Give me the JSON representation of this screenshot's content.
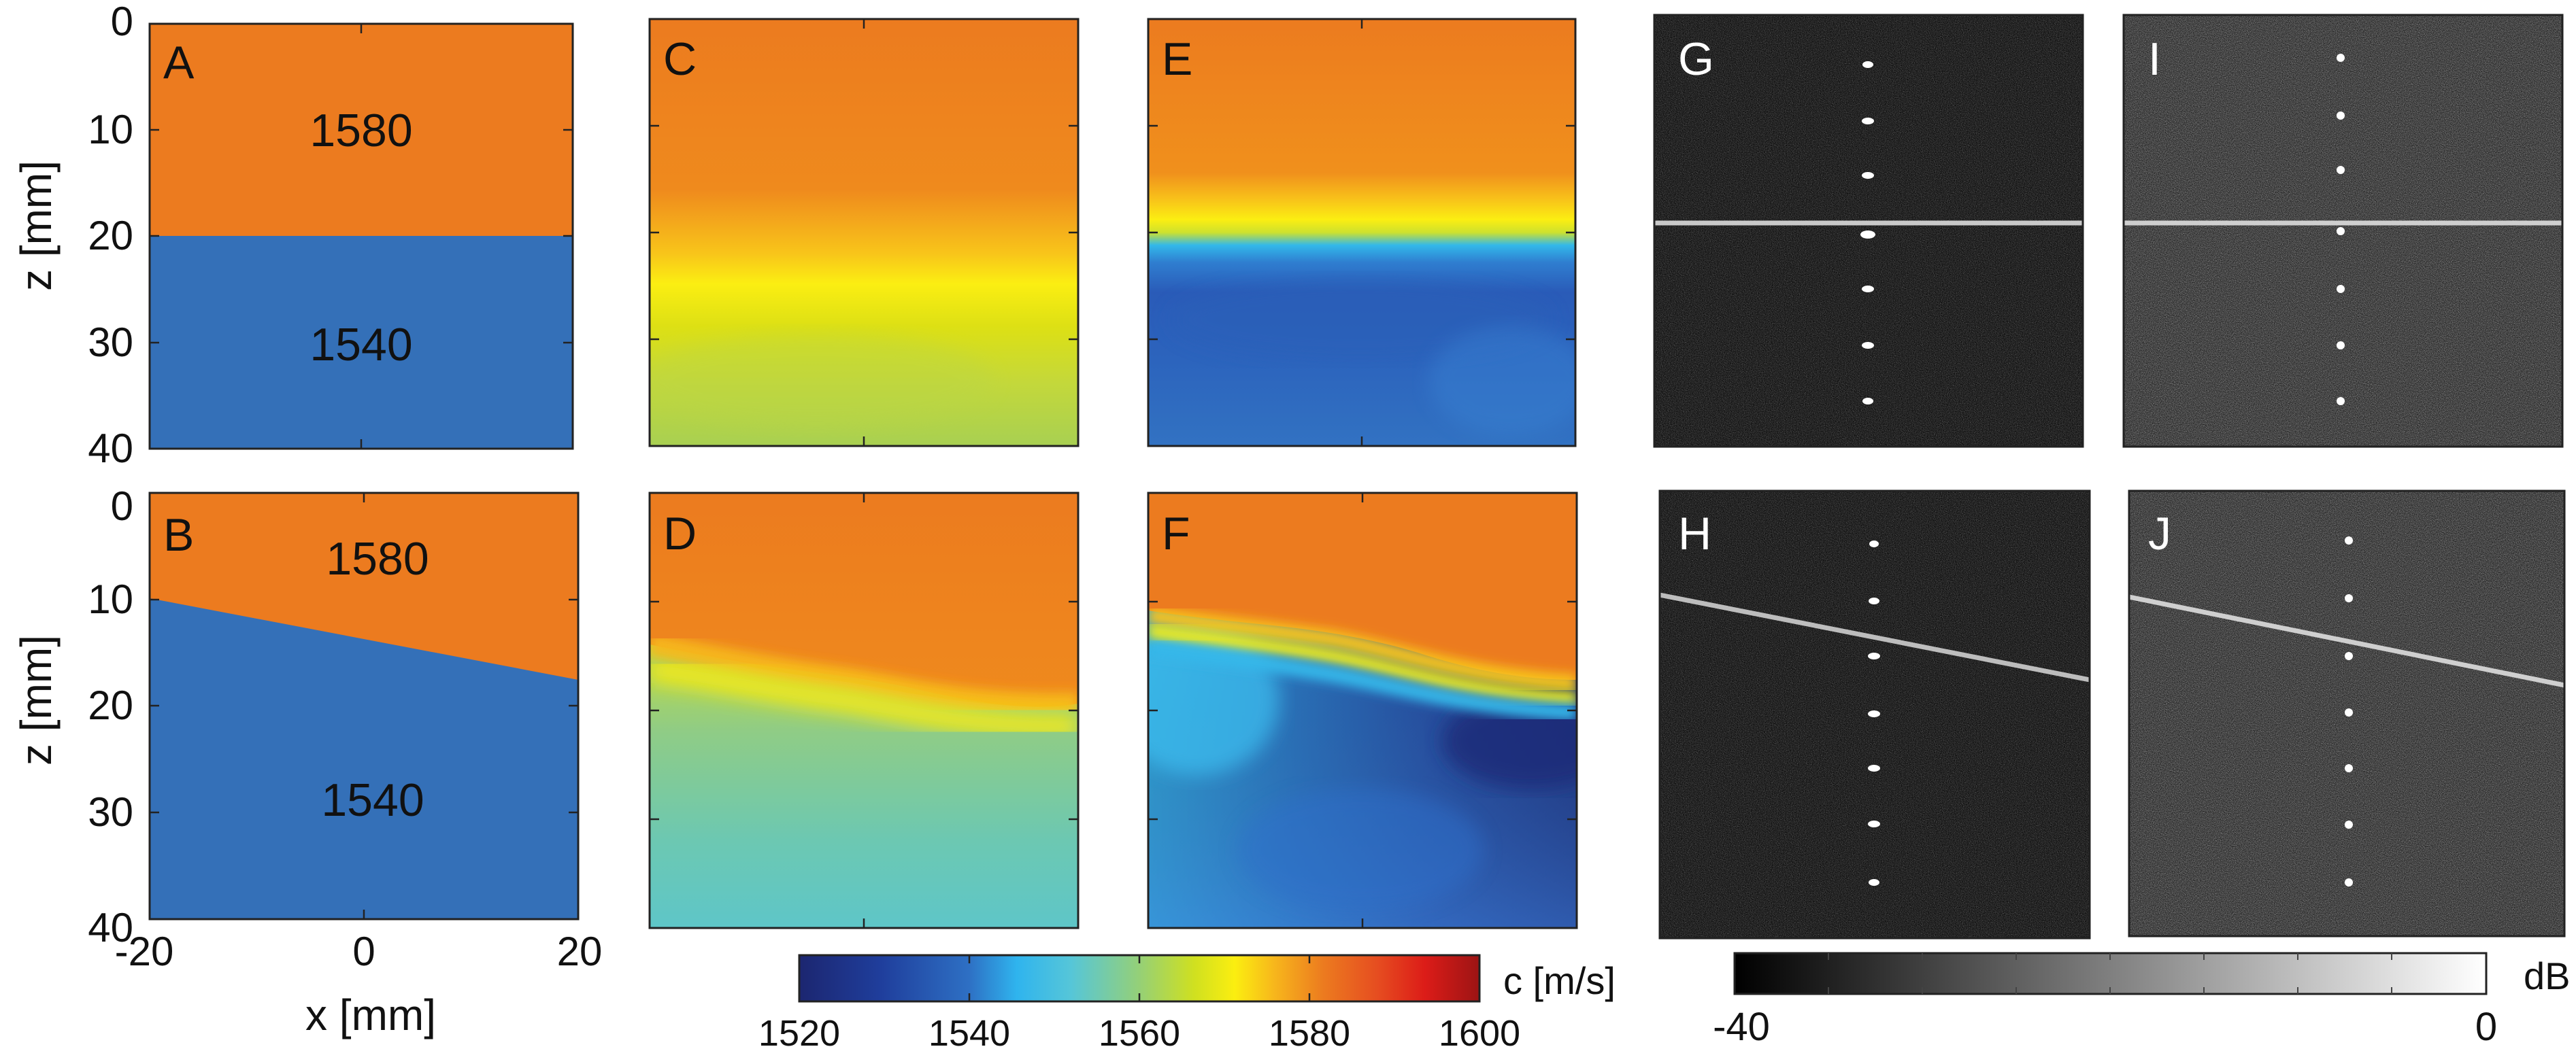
{
  "figure": {
    "axis_labels": {
      "x": "x [mm]",
      "z_top": "z [mm]",
      "z_bottom": "z [mm]"
    },
    "ticks": {
      "z_top": [
        "0",
        "10",
        "20",
        "30",
        "40"
      ],
      "z_bottom": [
        "0",
        "10",
        "20",
        "30",
        "40"
      ],
      "x": [
        "-20",
        "0",
        "20"
      ]
    },
    "panels": [
      {
        "letter": "A",
        "upper_value": "1580",
        "lower_value": "1540"
      },
      {
        "letter": "B",
        "upper_value": "1580",
        "lower_value": "1540"
      },
      {
        "letter": "C"
      },
      {
        "letter": "D"
      },
      {
        "letter": "E"
      },
      {
        "letter": "F"
      },
      {
        "letter": "G"
      },
      {
        "letter": "H"
      },
      {
        "letter": "I"
      },
      {
        "letter": "J"
      }
    ],
    "speed_colorbar": {
      "label": "c [m/s]",
      "ticks": [
        "1520",
        "1540",
        "1560",
        "1580",
        "1600"
      ],
      "range": [
        1520,
        1600
      ]
    },
    "db_colorbar": {
      "label": "dB",
      "ticks": [
        "-40",
        "0"
      ],
      "range": [
        -40,
        0
      ]
    },
    "colors": {
      "orange": "#ec7b1f",
      "blue": "#3470b8",
      "yellow": "#ffee10",
      "frame": "#222222"
    }
  },
  "chart_data": [
    {
      "type": "heatmap",
      "panel": "A",
      "xlabel": "",
      "ylabel": "z [mm]",
      "xlim": [
        -20,
        20
      ],
      "ylim": [
        0,
        40
      ],
      "regions": [
        {
          "name": "1580",
          "speed": 1580,
          "z_range": [
            0,
            20
          ]
        },
        {
          "name": "1540",
          "speed": 1540,
          "z_range": [
            20,
            40
          ]
        }
      ],
      "interface": {
        "x": [
          -20,
          20
        ],
        "z": [
          20,
          20
        ]
      }
    },
    {
      "type": "heatmap",
      "panel": "B",
      "xlabel": "x [mm]",
      "ylabel": "z [mm]",
      "xlim": [
        -20,
        20
      ],
      "ylim": [
        0,
        40
      ],
      "regions": [
        {
          "name": "1580",
          "speed": 1580
        },
        {
          "name": "1540",
          "speed": 1540
        }
      ],
      "interface": {
        "x": [
          -20,
          20
        ],
        "z": [
          10,
          17.5
        ]
      }
    },
    {
      "type": "heatmap",
      "panel": "C",
      "xlim": [
        -20,
        20
      ],
      "ylim": [
        0,
        40
      ],
      "profile": [
        {
          "z": 0,
          "speed": 1584
        },
        {
          "z": 15,
          "speed": 1582
        },
        {
          "z": 21,
          "speed": 1578
        },
        {
          "z": 24,
          "speed": 1572
        },
        {
          "z": 28,
          "speed": 1568
        },
        {
          "z": 40,
          "speed": 1562
        }
      ]
    },
    {
      "type": "heatmap",
      "panel": "D",
      "xlim": [
        -20,
        20
      ],
      "ylim": [
        0,
        40
      ],
      "interface": {
        "x": [
          -20,
          -10,
          0,
          10,
          20
        ],
        "z": [
          15.5,
          17,
          18.2,
          20.5,
          21.8
        ]
      },
      "profile": [
        {
          "z": 0,
          "speed": 1584
        },
        {
          "z": 11,
          "speed": 1582
        },
        {
          "z": 15,
          "speed": 1576
        },
        {
          "z": 18,
          "speed": 1570
        },
        {
          "z": 25,
          "speed": 1564
        },
        {
          "z": 33,
          "speed": 1556
        },
        {
          "z": 40,
          "speed": 1552
        }
      ]
    },
    {
      "type": "heatmap",
      "panel": "E",
      "xlim": [
        -20,
        20
      ],
      "ylim": [
        0,
        40
      ],
      "profile": [
        {
          "z": 0,
          "speed": 1584
        },
        {
          "z": 14,
          "speed": 1582
        },
        {
          "z": 17,
          "speed": 1574
        },
        {
          "z": 19,
          "speed": 1566
        },
        {
          "z": 21,
          "speed": 1546
        },
        {
          "z": 23,
          "speed": 1537
        },
        {
          "z": 28,
          "speed": 1533
        },
        {
          "z": 40,
          "speed": 1538
        }
      ]
    },
    {
      "type": "heatmap",
      "panel": "F",
      "xlim": [
        -20,
        20
      ],
      "ylim": [
        0,
        40
      ],
      "interface": {
        "x": [
          -20,
          -10,
          0,
          10,
          20
        ],
        "z": [
          11.5,
          13,
          15,
          18,
          19
        ]
      },
      "profile": [
        {
          "z": 0,
          "speed": 1584
        },
        {
          "z": 9,
          "speed": 1582
        },
        {
          "z": 12,
          "speed": 1574
        },
        {
          "z": 14,
          "speed": 1566
        },
        {
          "z": 16,
          "speed": 1546
        },
        {
          "z": 20,
          "speed": 1538
        },
        {
          "z": 26,
          "speed": 1528
        },
        {
          "z": 40,
          "speed": 1536
        }
      ]
    }
  ]
}
